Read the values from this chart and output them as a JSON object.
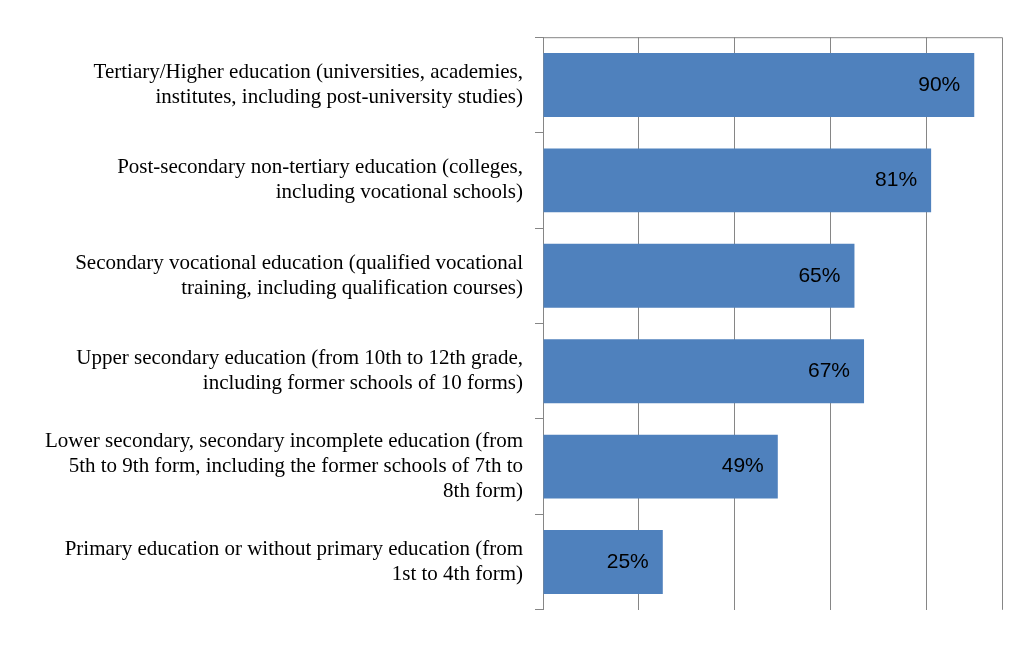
{
  "chart_data": {
    "type": "bar",
    "orientation": "horizontal",
    "categories": [
      "Tertiary/Higher education (universities, academies, institutes, including post-university studies)",
      "Post-secondary non-tertiary education (colleges, including vocational schools)",
      "Secondary vocational education (qualified vocational training, including qualification courses)",
      "Upper secondary education (from 10th to 12th grade, including former schools of 10 forms)",
      "Lower secondary, secondary incomplete education (from 5th to 9th form, including the former schools of 7th to 8th form)",
      "Primary education or without primary education (from 1st to 4th form)"
    ],
    "values": [
      90,
      81,
      65,
      67,
      49,
      25
    ],
    "value_labels": [
      "90%",
      "81%",
      "65%",
      "67%",
      "49%",
      "25%"
    ],
    "color": "#4f81bd",
    "xlim": [
      0,
      96
    ],
    "xticks": [
      {
        "value": 0,
        "label": null
      },
      {
        "value": 20,
        "label": null
      },
      {
        "value": 40,
        "label": null
      },
      {
        "value": 60,
        "label": null
      },
      {
        "value": 80,
        "label": null
      }
    ],
    "tick_labels": "y",
    "grid": "x",
    "legend": false
  }
}
